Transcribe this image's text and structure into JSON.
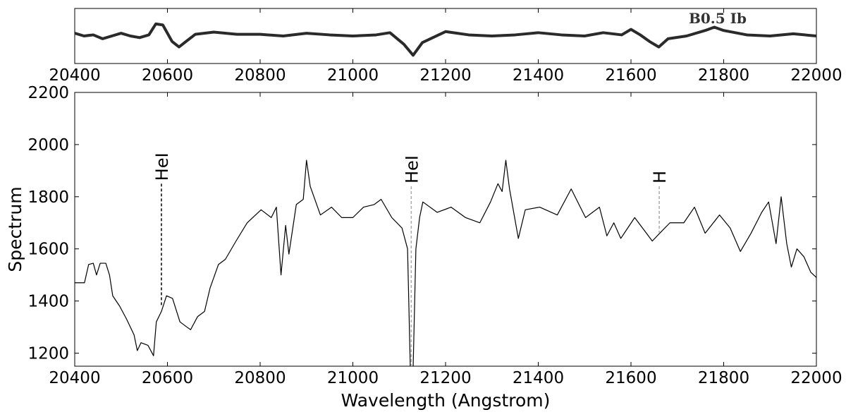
{
  "chart_data": [
    {
      "type": "line",
      "title": "B0.5 Ib",
      "x": [
        20400,
        20420,
        20440,
        20460,
        20480,
        20500,
        20520,
        20540,
        20560,
        20575,
        20590,
        20610,
        20625,
        20640,
        20660,
        20700,
        20750,
        20800,
        20850,
        20900,
        20950,
        21000,
        21050,
        21080,
        21110,
        21130,
        21150,
        21200,
        21250,
        21300,
        21350,
        21400,
        21450,
        21500,
        21540,
        21580,
        21600,
        21620,
        21640,
        21660,
        21680,
        21720,
        21760,
        21780,
        21800,
        21850,
        21900,
        21950,
        22000
      ],
      "series": [
        {
          "name": "B0.5 Ib",
          "color": "#2a2a2a",
          "values": [
            0.55,
            0.5,
            0.52,
            0.45,
            0.5,
            0.55,
            0.5,
            0.47,
            0.52,
            0.72,
            0.7,
            0.4,
            0.3,
            0.4,
            0.53,
            0.57,
            0.53,
            0.53,
            0.5,
            0.55,
            0.52,
            0.5,
            0.52,
            0.56,
            0.35,
            0.15,
            0.38,
            0.58,
            0.52,
            0.5,
            0.52,
            0.56,
            0.52,
            0.5,
            0.56,
            0.52,
            0.62,
            0.52,
            0.4,
            0.3,
            0.45,
            0.5,
            0.6,
            0.66,
            0.6,
            0.52,
            0.5,
            0.54,
            0.5
          ]
        }
      ],
      "xlim": [
        20400,
        22000
      ],
      "ylim": [
        0,
        1
      ],
      "xticks": [
        20400,
        20600,
        20800,
        21000,
        21200,
        21400,
        21600,
        21800,
        22000
      ]
    },
    {
      "type": "line",
      "xlabel": "Wavelength (Angstrom)",
      "ylabel": "Spectrum",
      "x": [
        20400,
        20421,
        20430,
        20440,
        20447,
        20455,
        20467,
        20475,
        20482,
        20497,
        20512,
        20528,
        20535,
        20543,
        20558,
        20570,
        20576,
        20587,
        20598,
        20611,
        20627,
        20642,
        20650,
        20665,
        20680,
        20692,
        20710,
        20725,
        20748,
        20772,
        20802,
        20824,
        20835,
        20845,
        20855,
        20862,
        20878,
        20893,
        20900,
        20908,
        20930,
        20954,
        20976,
        21000,
        21023,
        21046,
        21061,
        21084,
        21106,
        21118,
        21124,
        21130,
        21136,
        21144,
        21151,
        21182,
        21212,
        21243,
        21274,
        21297,
        21313,
        21322,
        21330,
        21338,
        21349,
        21357,
        21372,
        21403,
        21441,
        21471,
        21502,
        21532,
        21548,
        21563,
        21578,
        21608,
        21646,
        21662,
        21684,
        21714,
        21737,
        21760,
        21791,
        21814,
        21836,
        21859,
        21882,
        21897,
        21913,
        21924,
        21936,
        21946,
        21958,
        21973,
        21988,
        22000
      ],
      "series": [
        {
          "name": "Spectrum",
          "color": "#000000",
          "values": [
            1470,
            1470,
            1540,
            1545,
            1500,
            1545,
            1545,
            1500,
            1420,
            1380,
            1330,
            1270,
            1210,
            1240,
            1230,
            1190,
            1320,
            1360,
            1420,
            1410,
            1320,
            1300,
            1290,
            1340,
            1360,
            1450,
            1540,
            1560,
            1630,
            1700,
            1750,
            1720,
            1760,
            1500,
            1690,
            1580,
            1770,
            1790,
            1940,
            1840,
            1730,
            1760,
            1720,
            1720,
            1760,
            1770,
            1790,
            1720,
            1680,
            1600,
            1140,
            1140,
            1600,
            1720,
            1780,
            1740,
            1760,
            1720,
            1700,
            1780,
            1850,
            1820,
            1940,
            1830,
            1720,
            1640,
            1750,
            1760,
            1730,
            1830,
            1720,
            1760,
            1650,
            1700,
            1640,
            1720,
            1630,
            1660,
            1700,
            1700,
            1760,
            1660,
            1730,
            1680,
            1590,
            1660,
            1740,
            1780,
            1620,
            1800,
            1620,
            1530,
            1600,
            1570,
            1510,
            1490
          ]
        }
      ],
      "annotations": [
        {
          "text": "HeI",
          "x": 20587,
          "y": 1850,
          "y_end": 1380,
          "color": "#000000"
        },
        {
          "text": "HeI",
          "x": 21126,
          "y": 1840,
          "y_end": 1150,
          "color": "#aaaaaa"
        },
        {
          "text": "H",
          "x": 21661,
          "y": 1840,
          "y_end": 1660,
          "color": "#aaaaaa"
        }
      ],
      "xlim": [
        20400,
        22000
      ],
      "ylim": [
        1150,
        2200
      ],
      "xticks": [
        20400,
        20600,
        20800,
        21000,
        21200,
        21400,
        21600,
        21800,
        22000
      ],
      "yticks": [
        1200,
        1400,
        1600,
        1800,
        2000,
        2200
      ]
    }
  ]
}
